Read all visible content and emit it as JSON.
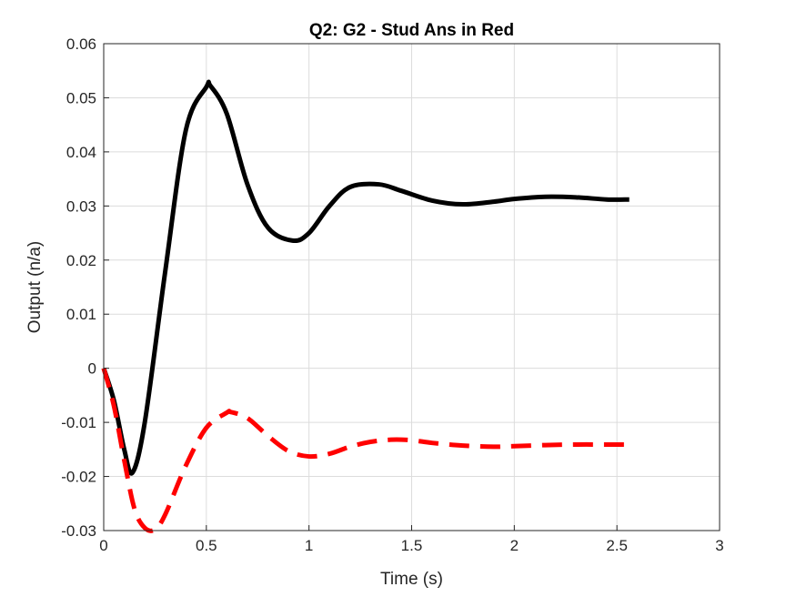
{
  "chart_data": {
    "type": "line",
    "title": "Q2: G2 - Stud Ans in Red",
    "xlabel": "Time (s)",
    "ylabel": "Output (n/a)",
    "xlim": [
      0,
      3
    ],
    "ylim": [
      -0.03,
      0.06
    ],
    "xticks": [
      0,
      0.5,
      1,
      1.5,
      2,
      2.5,
      3
    ],
    "xtick_labels": [
      "0",
      "0.5",
      "1",
      "1.5",
      "2",
      "2.5",
      "3"
    ],
    "yticks": [
      -0.03,
      -0.02,
      -0.01,
      0,
      0.01,
      0.02,
      0.03,
      0.04,
      0.05,
      0.06
    ],
    "ytick_labels": [
      "-0.03",
      "-0.02",
      "-0.01",
      "0",
      "0.01",
      "0.02",
      "0.03",
      "0.04",
      "0.05",
      "0.06"
    ],
    "grid": true,
    "series": [
      {
        "color": "#000000",
        "style": "solid",
        "x": [
          0,
          0.05,
          0.1,
          0.14,
          0.2,
          0.3,
          0.4,
          0.5,
          0.52,
          0.6,
          0.7,
          0.8,
          0.92,
          1.0,
          1.1,
          1.2,
          1.34,
          1.45,
          1.6,
          1.75,
          1.9,
          2.0,
          2.15,
          2.3,
          2.45,
          2.56
        ],
        "y": [
          0,
          -0.006,
          -0.015,
          -0.0193,
          -0.01,
          0.018,
          0.044,
          0.052,
          0.0522,
          0.047,
          0.034,
          0.026,
          0.0236,
          0.025,
          0.03,
          0.0335,
          0.034,
          0.0328,
          0.031,
          0.0303,
          0.0308,
          0.0313,
          0.0317,
          0.0316,
          0.0312,
          0.0312
        ]
      },
      {
        "color": "#ff0000",
        "style": "dashed",
        "x": [
          0,
          0.05,
          0.1,
          0.15,
          0.2,
          0.25,
          0.3,
          0.4,
          0.5,
          0.6,
          0.62,
          0.7,
          0.8,
          0.9,
          1.0,
          1.1,
          1.2,
          1.3,
          1.4,
          1.5,
          1.6,
          1.75,
          1.9,
          2.0,
          2.15,
          2.3,
          2.45,
          2.56
        ],
        "y": [
          0,
          -0.007,
          -0.017,
          -0.026,
          -0.0295,
          -0.0298,
          -0.027,
          -0.018,
          -0.011,
          -0.0082,
          -0.0081,
          -0.0092,
          -0.0125,
          -0.0153,
          -0.0163,
          -0.0158,
          -0.0145,
          -0.0136,
          -0.0132,
          -0.0133,
          -0.0138,
          -0.0143,
          -0.0145,
          -0.0144,
          -0.0142,
          -0.0141,
          -0.0141,
          -0.0141
        ]
      }
    ]
  }
}
